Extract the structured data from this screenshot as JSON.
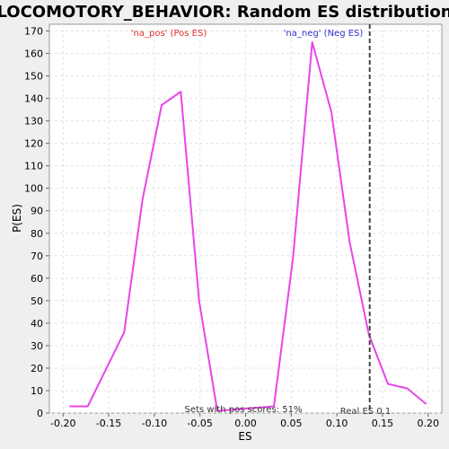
{
  "chart_data": {
    "type": "line",
    "title": "LOCOMOTORY_BEHAVIOR: Random ES distribution",
    "xlabel": "ES",
    "ylabel": "P(ES)",
    "xlim": [
      -0.215,
      0.215
    ],
    "ylim": [
      0,
      173
    ],
    "x_ticks": [
      -0.2,
      -0.15,
      -0.1,
      -0.05,
      0.0,
      0.05,
      0.1,
      0.15,
      0.2
    ],
    "x_tick_labels": [
      "-0.20",
      "-0.15",
      "-0.10",
      "-0.05",
      "0.00",
      "0.05",
      "0.10",
      "0.15",
      "0.20"
    ],
    "y_ticks": [
      0,
      10,
      20,
      30,
      40,
      50,
      60,
      70,
      80,
      90,
      100,
      110,
      120,
      130,
      140,
      150,
      160,
      170
    ],
    "y_tick_labels": [
      "0",
      "10",
      "20",
      "30",
      "40",
      "50",
      "60",
      "70",
      "80",
      "90",
      "100",
      "110",
      "120",
      "130",
      "140",
      "150",
      "160",
      "170"
    ],
    "grid": true,
    "series": [
      {
        "color": "#e845e8",
        "x": [
          -0.193,
          -0.173,
          -0.133,
          -0.113,
          -0.092,
          -0.071,
          -0.051,
          -0.031,
          0.031,
          0.052,
          0.073,
          0.094,
          0.114,
          0.135,
          0.156,
          0.177,
          0.198
        ],
        "y": [
          3,
          3,
          36,
          95,
          137,
          143,
          50,
          1,
          3,
          69,
          165,
          134,
          76,
          35,
          13,
          11,
          4
        ]
      }
    ],
    "reference_line": {
      "x": 0.136,
      "label": "Real ES 0.1",
      "color": "#444444"
    },
    "annotations": [
      {
        "text": "'na_pos' (Pos ES)",
        "color": "#e03030"
      },
      {
        "text": "'na_neg' (Neg ES)",
        "color": "#3030d0"
      },
      {
        "text": "Sets with pos scores: 51%",
        "color": "#333333"
      }
    ]
  }
}
